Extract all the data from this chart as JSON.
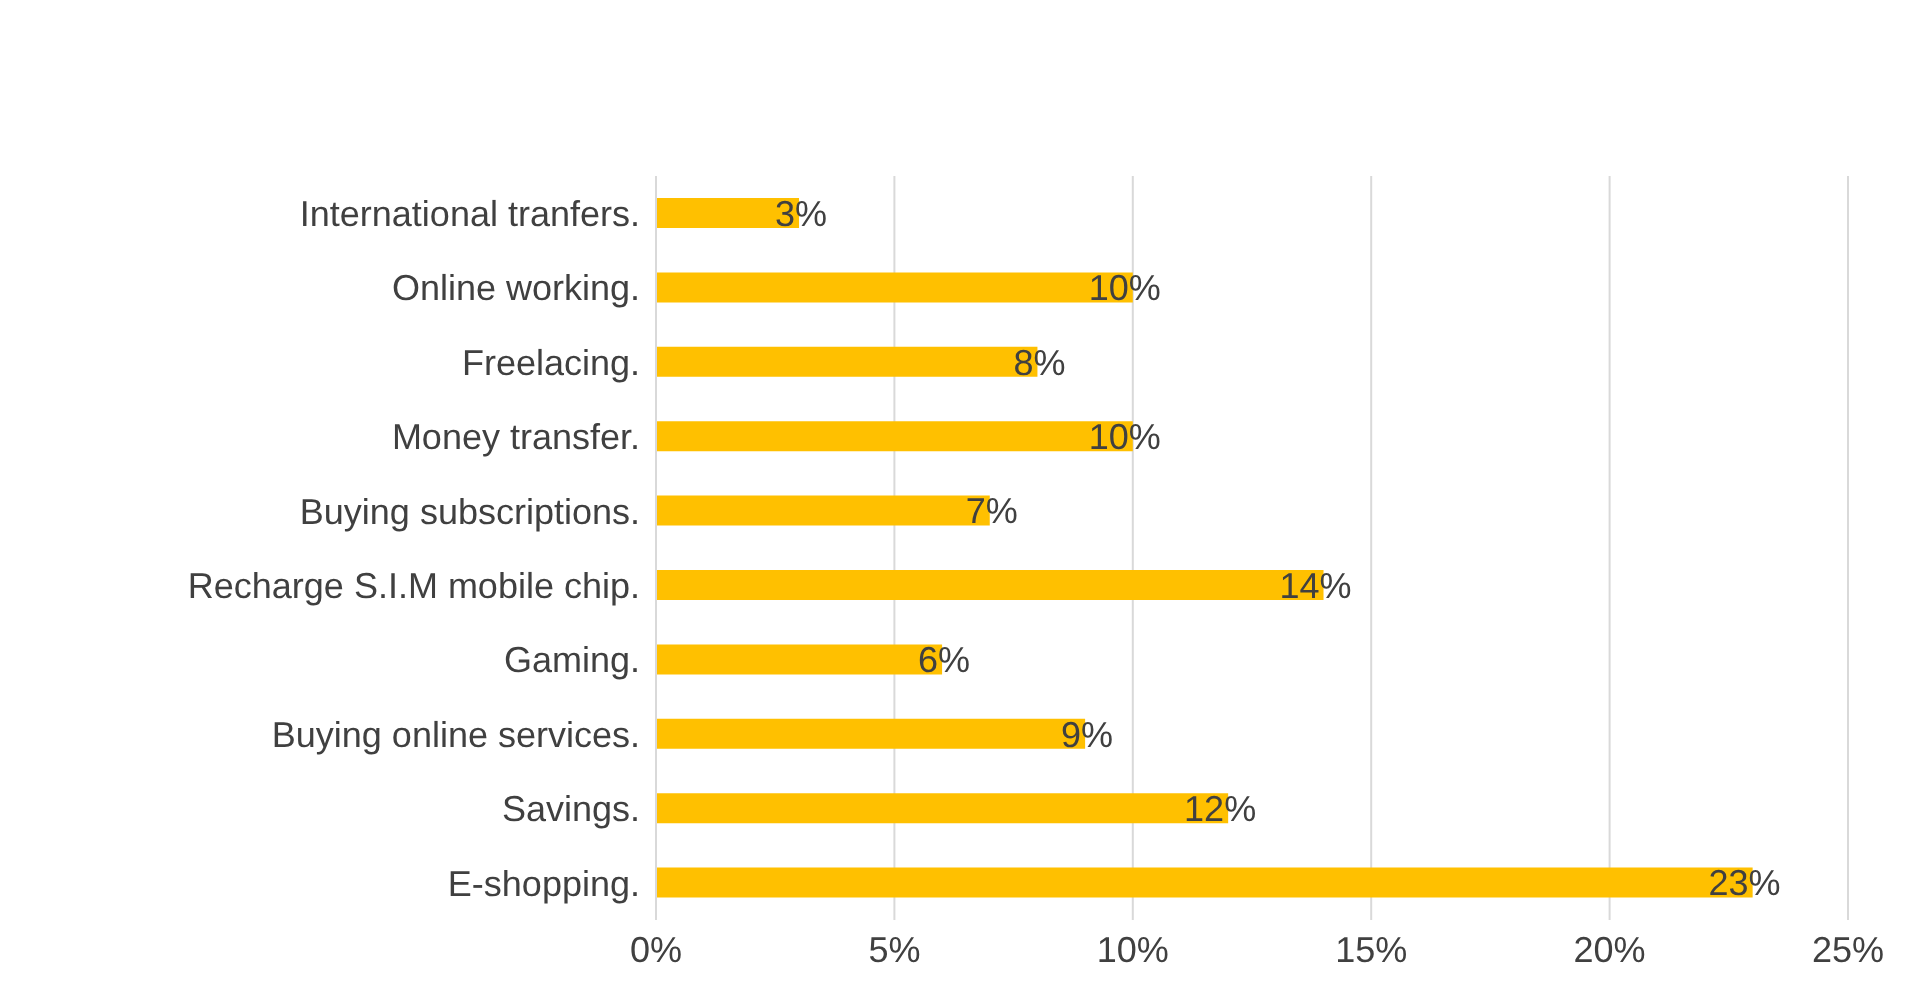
{
  "chart_data": {
    "type": "bar",
    "orientation": "horizontal",
    "categories": [
      "International tranfers.",
      "Online working.",
      "Freelacing.",
      "Money transfer.",
      "Buying subscriptions.",
      "Recharge S.I.M mobile chip.",
      "Gaming.",
      "Buying online services.",
      "Savings.",
      "E-shopping."
    ],
    "values": [
      3,
      10,
      8,
      10,
      7,
      14,
      6,
      9,
      12,
      23
    ],
    "value_labels": [
      "3%",
      "10%",
      "8%",
      "10%",
      "7%",
      "14%",
      "6%",
      "9%",
      "12%",
      "23%"
    ],
    "color": "#ffc000",
    "xlim": [
      0,
      25
    ],
    "xticks": [
      {
        "value": 0,
        "label": "0%"
      },
      {
        "value": 5,
        "label": "5%"
      },
      {
        "value": 10,
        "label": "10%"
      },
      {
        "value": 15,
        "label": "15%"
      },
      {
        "value": 20,
        "label": "20%"
      },
      {
        "value": 25,
        "label": "25%"
      }
    ],
    "grid": "x",
    "legend": false
  }
}
